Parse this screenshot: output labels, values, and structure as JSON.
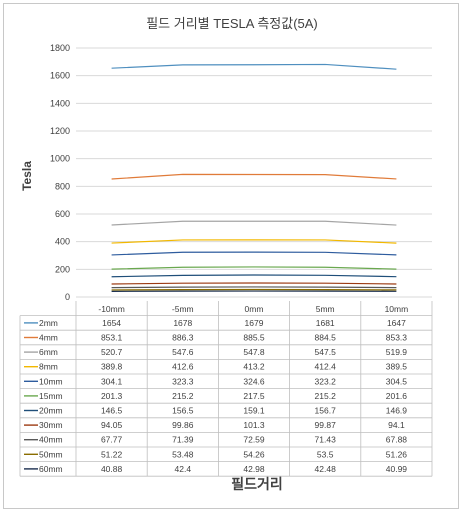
{
  "chart_data": {
    "type": "line",
    "title": "필드 거리별 TESLA 측정값(5A)",
    "xlabel": "필드거리",
    "ylabel": "Tesla",
    "categories": [
      "-10mm",
      "-5mm",
      "0mm",
      "5mm",
      "10mm"
    ],
    "ylim": [
      0,
      1800
    ],
    "yticks": [
      0,
      200,
      400,
      600,
      800,
      1000,
      1200,
      1400,
      1600,
      1800
    ],
    "grid": true,
    "legend": "data-table",
    "series": [
      {
        "name": "2mm",
        "color": "#4f8fbf",
        "values": [
          1654,
          1678,
          1679,
          1681,
          1647
        ],
        "labels": [
          "1654",
          "1678",
          "1679",
          "1681",
          "1647"
        ]
      },
      {
        "name": "4mm",
        "color": "#e07b39",
        "values": [
          853.1,
          886.3,
          885.5,
          884.5,
          853.3
        ],
        "labels": [
          "853.1",
          "886.3",
          "885.5",
          "884.5",
          "853.3"
        ]
      },
      {
        "name": "6mm",
        "color": "#a5a5a5",
        "values": [
          520.7,
          547.6,
          547.8,
          547.5,
          519.9
        ],
        "labels": [
          "520.7",
          "547.6",
          "547.8",
          "547.5",
          "519.9"
        ]
      },
      {
        "name": "8mm",
        "color": "#f2b800",
        "values": [
          389.8,
          412.6,
          413.2,
          412.4,
          389.5
        ],
        "labels": [
          "389.8",
          "412.6",
          "413.2",
          "412.4",
          "389.5"
        ]
      },
      {
        "name": "10mm",
        "color": "#2e5c9e",
        "values": [
          304.1,
          323.3,
          324.6,
          323.2,
          304.5
        ],
        "labels": [
          "304.1",
          "323.3",
          "324.6",
          "323.2",
          "304.5"
        ]
      },
      {
        "name": "15mm",
        "color": "#6aa84f",
        "values": [
          201.3,
          215.2,
          217.5,
          215.2,
          201.6
        ],
        "labels": [
          "201.3",
          "215.2",
          "217.5",
          "215.2",
          "201.6"
        ]
      },
      {
        "name": "20mm",
        "color": "#1f4e79",
        "values": [
          146.5,
          156.5,
          159.1,
          156.7,
          146.9
        ],
        "labels": [
          "146.5",
          "156.5",
          "159.1",
          "156.7",
          "146.9"
        ]
      },
      {
        "name": "30mm",
        "color": "#9c3b13",
        "values": [
          94.05,
          99.86,
          101.3,
          99.87,
          94.1
        ],
        "labels": [
          "94.05",
          "99.86",
          "101.3",
          "99.87",
          "94.1"
        ]
      },
      {
        "name": "40mm",
        "color": "#595959",
        "values": [
          67.77,
          71.39,
          72.59,
          71.43,
          67.88
        ],
        "labels": [
          "67.77",
          "71.39",
          "72.59",
          "71.43",
          "67.88"
        ]
      },
      {
        "name": "50mm",
        "color": "#8a6d00",
        "values": [
          51.22,
          53.48,
          54.26,
          53.5,
          51.26
        ],
        "labels": [
          "51.22",
          "53.48",
          "54.26",
          "53.5",
          "51.26"
        ]
      },
      {
        "name": "60mm",
        "color": "#1c2f4f",
        "values": [
          40.88,
          42.4,
          42.98,
          42.48,
          40.99
        ],
        "labels": [
          "40.88",
          "42.4",
          "42.98",
          "42.48",
          "40.99"
        ]
      }
    ]
  }
}
